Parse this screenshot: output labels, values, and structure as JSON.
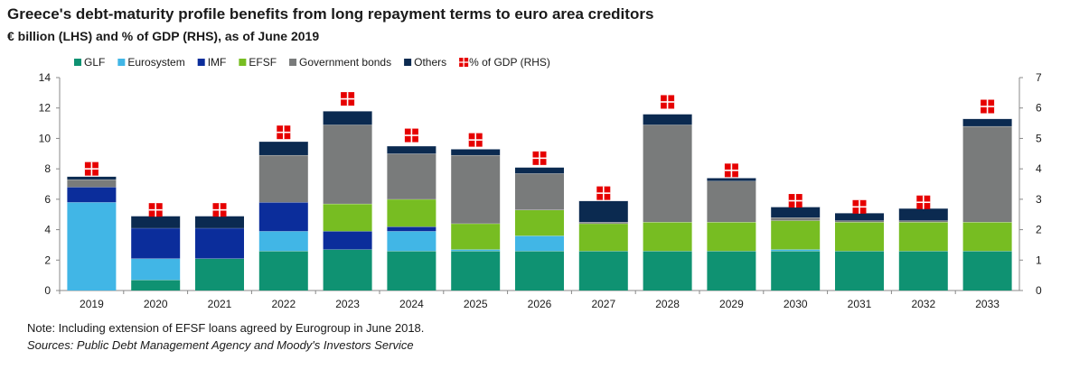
{
  "header": {
    "title": "Greece's debt-maturity profile benefits from long repayment terms to euro area creditors",
    "subtitle": "€ billion (LHS) and % of GDP (RHS), as of June 2019"
  },
  "footer": {
    "note": "Note: Including extension of EFSF loans agreed by Eurogroup in June 2018.",
    "source": "Sources: Public Debt Management Agency and Moody's Investors Service"
  },
  "chart_data": {
    "type": "bar",
    "stacked": true,
    "categories": [
      "2019",
      "2020",
      "2021",
      "2022",
      "2023",
      "2024",
      "2025",
      "2026",
      "2027",
      "2028",
      "2029",
      "2030",
      "2031",
      "2032",
      "2033"
    ],
    "series": [
      {
        "name": "GLF",
        "color": "#0f9272",
        "values": [
          0,
          0.7,
          2.1,
          2.6,
          2.7,
          2.6,
          2.6,
          2.6,
          2.6,
          2.6,
          2.6,
          2.6,
          2.6,
          2.6,
          2.6
        ]
      },
      {
        "name": "Eurosystem",
        "color": "#41b6e6",
        "values": [
          5.8,
          1.4,
          0,
          1.3,
          0,
          1.3,
          0.1,
          1.0,
          0,
          0,
          0,
          0.1,
          0,
          0,
          0
        ]
      },
      {
        "name": "IMF",
        "color": "#0b2d9b",
        "values": [
          1.0,
          2.0,
          2.0,
          1.9,
          1.2,
          0.3,
          0,
          0,
          0,
          0,
          0,
          0,
          0,
          0,
          0
        ]
      },
      {
        "name": "EFSF",
        "color": "#77bd22",
        "values": [
          0,
          0,
          0,
          0,
          1.8,
          1.8,
          1.7,
          1.7,
          1.8,
          1.9,
          1.9,
          1.9,
          1.9,
          1.9,
          1.9
        ]
      },
      {
        "name": "Government bonds",
        "color": "#797b7b",
        "values": [
          0.5,
          0,
          0,
          3.1,
          5.2,
          3.0,
          4.5,
          2.4,
          0.1,
          6.4,
          2.7,
          0.2,
          0.1,
          0.1,
          6.3
        ]
      },
      {
        "name": "Others",
        "color": "#0b2a50",
        "values": [
          0.2,
          0.8,
          0.8,
          0.9,
          0.9,
          0.5,
          0.4,
          0.4,
          1.4,
          0.7,
          0.2,
          0.7,
          0.5,
          0.8,
          0.5
        ]
      }
    ],
    "line_series": {
      "name": "% of GDP (RHS)",
      "color": "#e60000",
      "axis": "right",
      "values": [
        4.0,
        2.65,
        2.65,
        5.2,
        6.3,
        5.1,
        4.95,
        4.35,
        3.2,
        6.2,
        3.95,
        2.95,
        2.75,
        2.9,
        6.05
      ]
    },
    "y_left": {
      "min": 0,
      "max": 14,
      "ticks": [
        "0",
        "2",
        "4",
        "6",
        "8",
        "10",
        "12",
        "14"
      ]
    },
    "y_right": {
      "min": 0,
      "max": 7,
      "ticks": [
        "0",
        "1",
        "2",
        "3",
        "4",
        "5",
        "6",
        "7"
      ]
    },
    "legend_position": "top-left",
    "grid": false
  }
}
